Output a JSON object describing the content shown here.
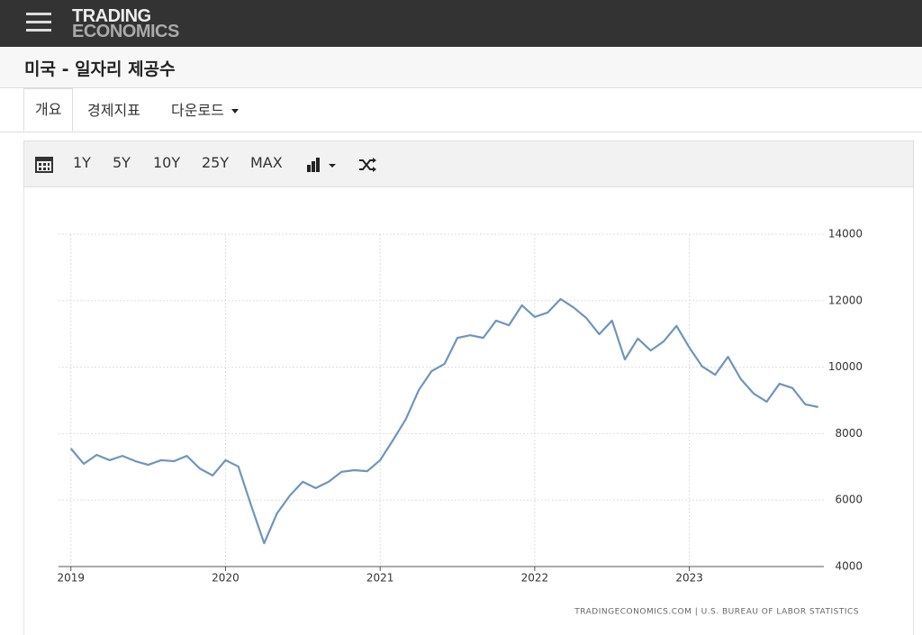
{
  "header": {
    "logo_line1": "TRADING",
    "logo_line2": "ECONOMICS",
    "page_title": "미국 - 일자리 제공수"
  },
  "tabs": [
    "개요",
    "경제지표",
    "다운로드"
  ],
  "toolbar": {
    "ranges": [
      "1Y",
      "5Y",
      "10Y",
      "25Y",
      "MAX"
    ]
  },
  "chart_data": {
    "type": "line",
    "color": "#6e95bd",
    "source": "TRADINGECONOMICS.COM  |  U.S. BUREAU OF LABOR STATISTICS",
    "x": [
      2019,
      2019.083,
      2019.167,
      2019.25,
      2019.333,
      2019.417,
      2019.5,
      2019.583,
      2019.667,
      2019.75,
      2019.833,
      2019.917,
      2020,
      2020.083,
      2020.167,
      2020.25,
      2020.333,
      2020.417,
      2020.5,
      2020.583,
      2020.667,
      2020.75,
      2020.833,
      2020.917,
      2021,
      2021.083,
      2021.167,
      2021.25,
      2021.333,
      2021.417,
      2021.5,
      2021.583,
      2021.667,
      2021.75,
      2021.833,
      2021.917,
      2022,
      2022.083,
      2022.167,
      2022.25,
      2022.333,
      2022.417,
      2022.5,
      2022.583,
      2022.667,
      2022.75,
      2022.833,
      2022.917,
      2023,
      2023.083,
      2023.167,
      2023.25,
      2023.333,
      2023.417,
      2023.5,
      2023.583,
      2023.667,
      2023.75,
      2023.833
    ],
    "values": [
      7550,
      7090,
      7360,
      7200,
      7330,
      7170,
      7060,
      7200,
      7170,
      7330,
      6950,
      6740,
      7200,
      7010,
      5820,
      4700,
      5600,
      6140,
      6550,
      6360,
      6550,
      6850,
      6900,
      6870,
      7200,
      7800,
      8440,
      9310,
      9880,
      10100,
      10880,
      10960,
      10880,
      11400,
      11260,
      11860,
      11510,
      11640,
      12050,
      11800,
      11480,
      10990,
      11400,
      10230,
      10860,
      10500,
      10770,
      11240,
      10590,
      10020,
      9770,
      10310,
      9640,
      9200,
      8960,
      9500,
      9370,
      8880,
      8800
    ],
    "xlim": [
      2018.92,
      2023.87
    ],
    "xticks": [
      2019,
      2020,
      2021,
      2022,
      2023
    ],
    "ylim": [
      4000,
      14000
    ],
    "yticks": [
      4000,
      6000,
      8000,
      10000,
      12000,
      14000
    ],
    "grid": true
  }
}
